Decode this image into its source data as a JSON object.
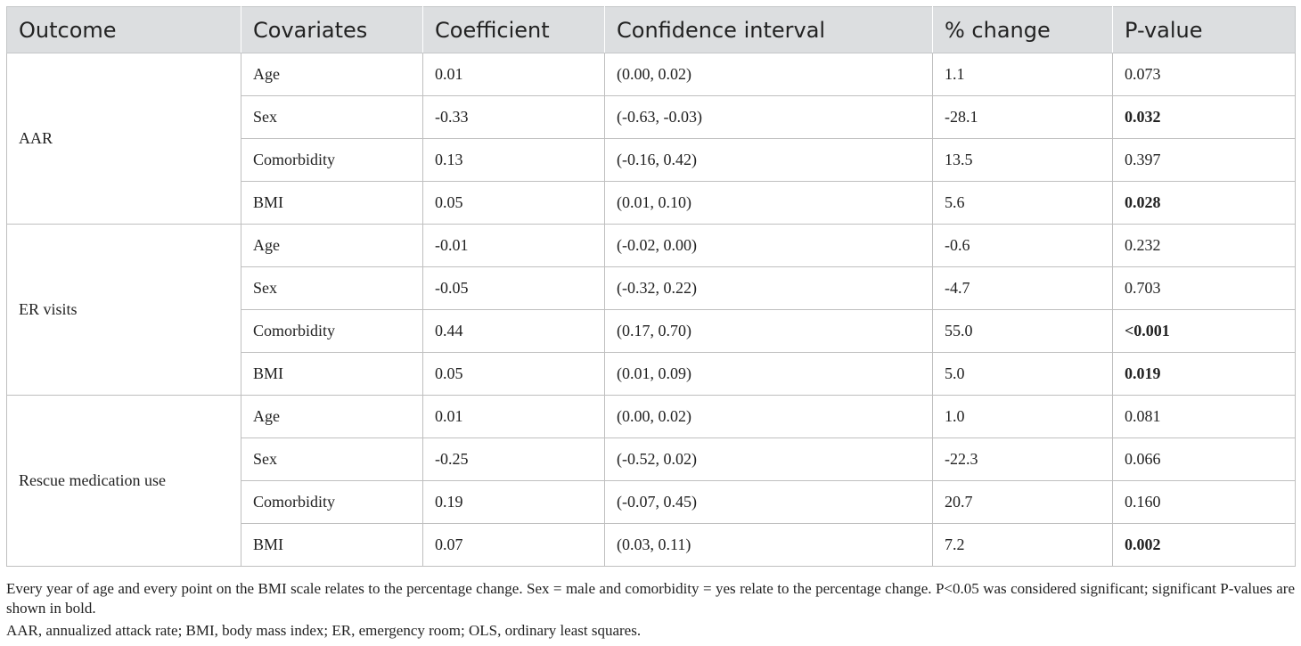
{
  "table": {
    "headers": [
      "Outcome",
      "Covariates",
      "Coefficient",
      "Confidence interval",
      "% change",
      "P-value"
    ],
    "groups": [
      {
        "outcome": "AAR",
        "rows": [
          {
            "covariate": "Age",
            "coefficient": "0.01",
            "ci": "(0.00, 0.02)",
            "change": "1.1",
            "p": "0.073",
            "bold": false
          },
          {
            "covariate": "Sex",
            "coefficient": "-0.33",
            "ci": "(-0.63, -0.03)",
            "change": "-28.1",
            "p": "0.032",
            "bold": true
          },
          {
            "covariate": "Comorbidity",
            "coefficient": "0.13",
            "ci": "(-0.16, 0.42)",
            "change": "13.5",
            "p": "0.397",
            "bold": false
          },
          {
            "covariate": "BMI",
            "coefficient": "0.05",
            "ci": "(0.01, 0.10)",
            "change": "5.6",
            "p": "0.028",
            "bold": true
          }
        ]
      },
      {
        "outcome": "ER visits",
        "rows": [
          {
            "covariate": "Age",
            "coefficient": "-0.01",
            "ci": "(-0.02, 0.00)",
            "change": "-0.6",
            "p": "0.232",
            "bold": false
          },
          {
            "covariate": "Sex",
            "coefficient": "-0.05",
            "ci": "(-0.32, 0.22)",
            "change": "-4.7",
            "p": "0.703",
            "bold": false
          },
          {
            "covariate": "Comorbidity",
            "coefficient": "0.44",
            "ci": "(0.17, 0.70)",
            "change": "55.0",
            "p": "<0.001",
            "bold": true
          },
          {
            "covariate": "BMI",
            "coefficient": "0.05",
            "ci": "(0.01, 0.09)",
            "change": "5.0",
            "p": "0.019",
            "bold": true
          }
        ]
      },
      {
        "outcome": "Rescue medication use",
        "rows": [
          {
            "covariate": "Age",
            "coefficient": "0.01",
            "ci": "(0.00, 0.02)",
            "change": "1.0",
            "p": "0.081",
            "bold": false
          },
          {
            "covariate": "Sex",
            "coefficient": "-0.25",
            "ci": "(-0.52, 0.02)",
            "change": "-22.3",
            "p": "0.066",
            "bold": false
          },
          {
            "covariate": "Comorbidity",
            "coefficient": "0.19",
            "ci": "(-0.07, 0.45)",
            "change": "20.7",
            "p": "0.160",
            "bold": false
          },
          {
            "covariate": "BMI",
            "coefficient": "0.07",
            "ci": "(0.03, 0.11)",
            "change": "7.2",
            "p": "0.002",
            "bold": true
          }
        ]
      }
    ]
  },
  "footnotes": {
    "note1": "Every year of age and every point on the BMI scale relates to the percentage change. Sex = male and comorbidity = yes relate to the percentage change. P<0.05 was considered significant; significant P-values are shown in bold.",
    "note2": "AAR, annualized attack rate; BMI, body mass index; ER, emergency room; OLS, ordinary least squares."
  },
  "colors": {
    "header_bg": "#dcdee0",
    "border": "#bfbfbf",
    "text": "#222222"
  }
}
